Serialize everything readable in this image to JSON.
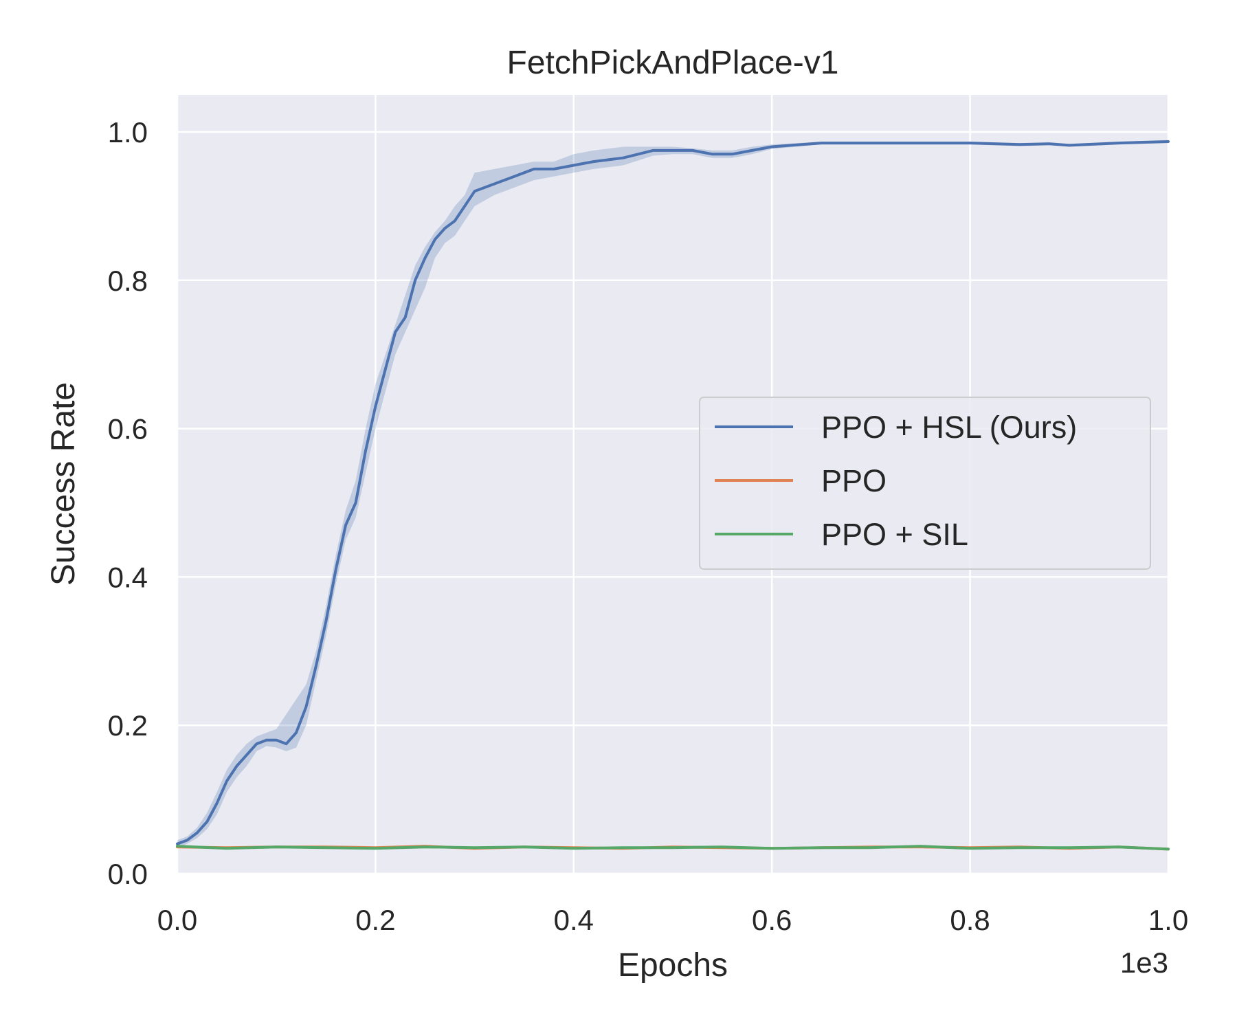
{
  "chart_data": {
    "type": "line",
    "title": "FetchPickAndPlace-v1",
    "xlabel": "Epochs",
    "ylabel": "Success Rate",
    "x_offset_text": "1e3",
    "xlim": [
      0.0,
      1.0
    ],
    "ylim": [
      0.0,
      1.05
    ],
    "x_ticks": [
      0.0,
      0.2,
      0.4,
      0.6,
      0.8,
      1.0
    ],
    "x_tick_labels": [
      "0.0",
      "0.2",
      "0.4",
      "0.6",
      "0.8",
      "1.0"
    ],
    "y_ticks": [
      0.0,
      0.2,
      0.4,
      0.6,
      0.8,
      1.0
    ],
    "y_tick_labels": [
      "0.0",
      "0.2",
      "0.4",
      "0.6",
      "0.8",
      "1.0"
    ],
    "grid": true,
    "legend_position": "center-right",
    "background_color": "#eaeaf2",
    "series": [
      {
        "name": "PPO + HSL (Ours)",
        "color": "#4c72b0",
        "x": [
          0.0,
          0.01,
          0.02,
          0.03,
          0.04,
          0.05,
          0.06,
          0.07,
          0.08,
          0.09,
          0.1,
          0.11,
          0.12,
          0.13,
          0.14,
          0.15,
          0.16,
          0.17,
          0.18,
          0.19,
          0.2,
          0.21,
          0.22,
          0.23,
          0.24,
          0.25,
          0.26,
          0.27,
          0.28,
          0.29,
          0.3,
          0.32,
          0.34,
          0.36,
          0.38,
          0.4,
          0.42,
          0.45,
          0.48,
          0.5,
          0.52,
          0.54,
          0.56,
          0.58,
          0.6,
          0.65,
          0.7,
          0.75,
          0.8,
          0.85,
          0.88,
          0.9,
          0.95,
          1.0
        ],
        "y": [
          0.04,
          0.045,
          0.055,
          0.07,
          0.095,
          0.125,
          0.145,
          0.16,
          0.175,
          0.18,
          0.18,
          0.175,
          0.19,
          0.225,
          0.28,
          0.34,
          0.41,
          0.47,
          0.5,
          0.57,
          0.63,
          0.68,
          0.73,
          0.75,
          0.8,
          0.83,
          0.855,
          0.87,
          0.88,
          0.9,
          0.92,
          0.93,
          0.94,
          0.95,
          0.95,
          0.955,
          0.96,
          0.965,
          0.975,
          0.975,
          0.975,
          0.97,
          0.97,
          0.975,
          0.98,
          0.985,
          0.985,
          0.985,
          0.985,
          0.983,
          0.984,
          0.982,
          0.985,
          0.987
        ],
        "band_upper": [
          0.045,
          0.05,
          0.062,
          0.082,
          0.11,
          0.14,
          0.16,
          0.175,
          0.185,
          0.19,
          0.195,
          0.215,
          0.235,
          0.255,
          0.3,
          0.36,
          0.43,
          0.49,
          0.53,
          0.6,
          0.66,
          0.7,
          0.74,
          0.78,
          0.82,
          0.845,
          0.865,
          0.88,
          0.9,
          0.915,
          0.945,
          0.95,
          0.955,
          0.96,
          0.96,
          0.97,
          0.975,
          0.98,
          0.98,
          0.98,
          0.978,
          0.975,
          0.975,
          0.98,
          0.983,
          0.987,
          0.987,
          0.987,
          0.987,
          0.985,
          0.986,
          0.984,
          0.987,
          0.989
        ],
        "band_lower": [
          0.035,
          0.04,
          0.048,
          0.06,
          0.08,
          0.11,
          0.13,
          0.145,
          0.165,
          0.172,
          0.17,
          0.165,
          0.17,
          0.2,
          0.26,
          0.32,
          0.39,
          0.45,
          0.48,
          0.54,
          0.6,
          0.65,
          0.7,
          0.73,
          0.76,
          0.79,
          0.83,
          0.85,
          0.86,
          0.88,
          0.9,
          0.915,
          0.925,
          0.935,
          0.94,
          0.945,
          0.95,
          0.955,
          0.968,
          0.97,
          0.97,
          0.965,
          0.965,
          0.97,
          0.977,
          0.983,
          0.983,
          0.983,
          0.983,
          0.981,
          0.982,
          0.98,
          0.983,
          0.985
        ]
      },
      {
        "name": "PPO",
        "color": "#dd8452",
        "x": [
          0.0,
          0.05,
          0.1,
          0.15,
          0.2,
          0.25,
          0.3,
          0.35,
          0.4,
          0.45,
          0.5,
          0.55,
          0.6,
          0.65,
          0.7,
          0.75,
          0.8,
          0.85,
          0.9,
          0.95,
          1.0
        ],
        "y": [
          0.036,
          0.035,
          0.036,
          0.036,
          0.035,
          0.037,
          0.034,
          0.036,
          0.035,
          0.034,
          0.036,
          0.035,
          0.034,
          0.035,
          0.036,
          0.036,
          0.035,
          0.036,
          0.034,
          0.036,
          0.033
        ]
      },
      {
        "name": "PPO + SIL",
        "color": "#55a868",
        "x": [
          0.0,
          0.05,
          0.1,
          0.15,
          0.2,
          0.25,
          0.3,
          0.35,
          0.4,
          0.45,
          0.5,
          0.55,
          0.6,
          0.65,
          0.7,
          0.75,
          0.8,
          0.85,
          0.9,
          0.95,
          1.0
        ],
        "y": [
          0.037,
          0.034,
          0.036,
          0.035,
          0.034,
          0.036,
          0.035,
          0.036,
          0.034,
          0.035,
          0.035,
          0.036,
          0.034,
          0.035,
          0.035,
          0.037,
          0.034,
          0.035,
          0.035,
          0.036,
          0.033
        ]
      }
    ]
  }
}
